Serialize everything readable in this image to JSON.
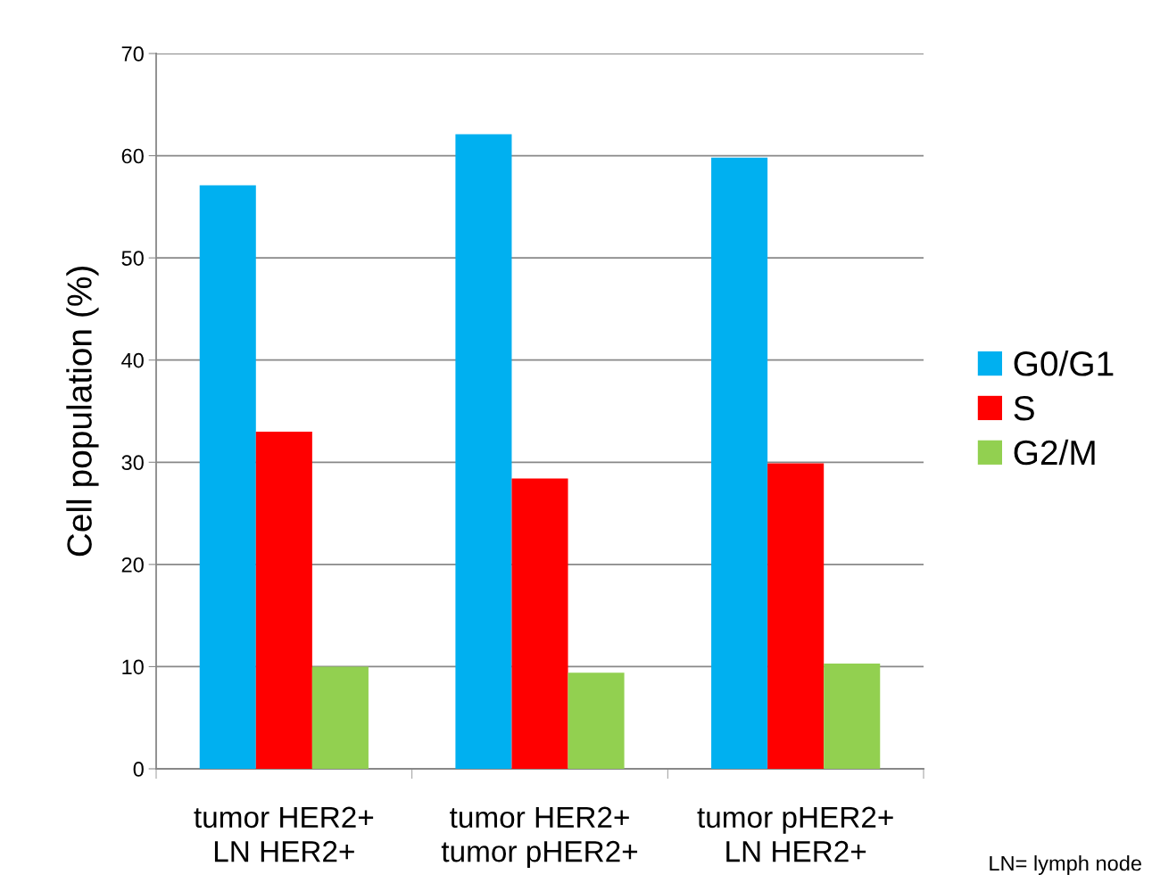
{
  "chart_data": {
    "type": "bar",
    "ylabel": "Cell population (%)",
    "categories": [
      "tumor HER2+\nLN HER2+",
      "tumor HER2+\ntumor pHER2+",
      "tumor pHER2+\nLN HER2+"
    ],
    "series": [
      {
        "name": "G0/G1",
        "color": "#00b0f0",
        "values": [
          57.1,
          62.1,
          59.8
        ]
      },
      {
        "name": "S",
        "color": "#ff0000",
        "values": [
          33.0,
          28.4,
          29.9
        ]
      },
      {
        "name": "G2/M",
        "color": "#92d050",
        "values": [
          10.0,
          9.4,
          10.3
        ]
      }
    ],
    "ylim": [
      0,
      70
    ],
    "yticks": [
      0,
      10,
      20,
      30,
      40,
      50,
      60,
      70
    ],
    "grid": "y",
    "legend": "right",
    "annotations": [
      "LN= lymph node"
    ]
  }
}
